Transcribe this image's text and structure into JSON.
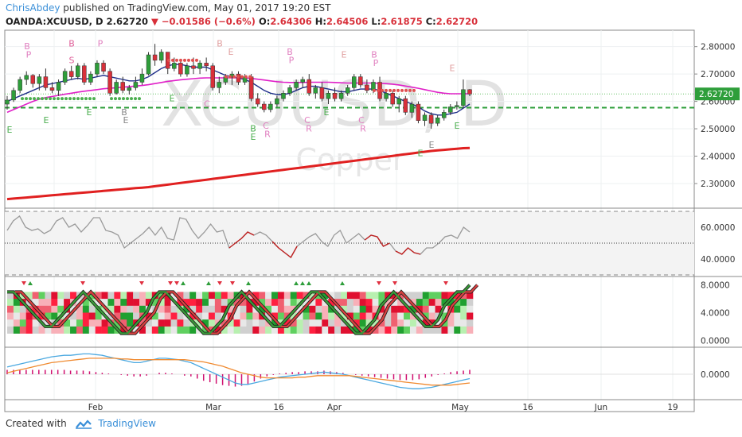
{
  "header": {
    "author": "ChrisAbdey",
    "published_text": "published on TradingView.com, May 01, 2017 19:20 EST",
    "symbol": "OANDA:XCUUSD, D",
    "last": "2.62720",
    "change": "−0.01586 (−0.6%)",
    "open_label": "O:",
    "open": "2.64306",
    "high_label": "H:",
    "high": "2.64506",
    "low_label": "L:",
    "low": "2.61875",
    "close_label": "C:",
    "close": "2.62720"
  },
  "watermark": {
    "symbol": "XCUUSD, D",
    "name": "Copper"
  },
  "footer": {
    "created_with": "Created with",
    "brand": "TradingView"
  },
  "colors": {
    "up": "#2e9e3a",
    "down": "#d8303a",
    "ma_short": "#1f2f8a",
    "ma_mid": "#e020c8",
    "ma_long": "#e02020",
    "rsi": "#9a9a9a",
    "macd": "#4aa8e0",
    "signal": "#f08a30",
    "hist": "#d01070",
    "price_tag": "#2e9e3a"
  },
  "chart_data": [
    {
      "type": "candlestick",
      "panel": "price",
      "x_ticks": [
        "Feb",
        "Mar",
        "16",
        "Apr",
        "May",
        "16",
        "Jun",
        "19"
      ],
      "y_ticks": [
        2.3,
        2.4,
        2.5,
        2.6,
        2.7,
        2.8
      ],
      "y_tick_labels": [
        "2.30000",
        "2.40000",
        "2.50000",
        "2.60000",
        "2.70000",
        "2.80000"
      ],
      "ylim": [
        2.21,
        2.86
      ],
      "last_price_label": "2.62720",
      "last_price": 2.6272,
      "support_level": 2.577,
      "ohlc": [
        [
          2.59,
          2.62,
          2.57,
          2.605
        ],
        [
          2.605,
          2.65,
          2.598,
          2.64
        ],
        [
          2.64,
          2.69,
          2.63,
          2.68
        ],
        [
          2.68,
          2.71,
          2.66,
          2.695
        ],
        [
          2.695,
          2.7,
          2.65,
          2.665
        ],
        [
          2.665,
          2.7,
          2.64,
          2.69
        ],
        [
          2.69,
          2.72,
          2.64,
          2.65
        ],
        [
          2.65,
          2.67,
          2.63,
          2.64
        ],
        [
          2.64,
          2.68,
          2.62,
          2.67
        ],
        [
          2.67,
          2.72,
          2.66,
          2.71
        ],
        [
          2.71,
          2.73,
          2.68,
          2.69
        ],
        [
          2.69,
          2.74,
          2.68,
          2.73
        ],
        [
          2.73,
          2.74,
          2.66,
          2.67
        ],
        [
          2.67,
          2.71,
          2.66,
          2.7
        ],
        [
          2.7,
          2.75,
          2.69,
          2.74
        ],
        [
          2.74,
          2.75,
          2.7,
          2.71
        ],
        [
          2.71,
          2.72,
          2.62,
          2.63
        ],
        [
          2.63,
          2.68,
          2.625,
          2.67
        ],
        [
          2.67,
          2.69,
          2.63,
          2.64
        ],
        [
          2.64,
          2.66,
          2.625,
          2.65
        ],
        [
          2.65,
          2.69,
          2.64,
          2.67
        ],
        [
          2.67,
          2.72,
          2.66,
          2.7
        ],
        [
          2.7,
          2.78,
          2.695,
          2.77
        ],
        [
          2.77,
          2.81,
          2.73,
          2.75
        ],
        [
          2.75,
          2.79,
          2.74,
          2.78
        ],
        [
          2.78,
          2.78,
          2.7,
          2.72
        ],
        [
          2.72,
          2.76,
          2.71,
          2.74
        ],
        [
          2.74,
          2.75,
          2.69,
          2.7
        ],
        [
          2.7,
          2.74,
          2.69,
          2.73
        ],
        [
          2.73,
          2.76,
          2.7,
          2.72
        ],
        [
          2.72,
          2.75,
          2.7,
          2.74
        ],
        [
          2.74,
          2.76,
          2.71,
          2.73
        ],
        [
          2.73,
          2.74,
          2.64,
          2.65
        ],
        [
          2.65,
          2.69,
          2.63,
          2.67
        ],
        [
          2.67,
          2.7,
          2.66,
          2.69
        ],
        [
          2.69,
          2.71,
          2.66,
          2.7
        ],
        [
          2.7,
          2.71,
          2.66,
          2.67
        ],
        [
          2.67,
          2.7,
          2.66,
          2.69
        ],
        [
          2.69,
          2.7,
          2.6,
          2.61
        ],
        [
          2.61,
          2.63,
          2.58,
          2.59
        ],
        [
          2.59,
          2.6,
          2.56,
          2.57
        ],
        [
          2.57,
          2.6,
          2.56,
          2.59
        ],
        [
          2.59,
          2.62,
          2.58,
          2.61
        ],
        [
          2.61,
          2.64,
          2.6,
          2.63
        ],
        [
          2.63,
          2.66,
          2.62,
          2.65
        ],
        [
          2.65,
          2.68,
          2.64,
          2.67
        ],
        [
          2.67,
          2.69,
          2.65,
          2.68
        ],
        [
          2.68,
          2.7,
          2.62,
          2.63
        ],
        [
          2.63,
          2.66,
          2.61,
          2.65
        ],
        [
          2.65,
          2.67,
          2.6,
          2.61
        ],
        [
          2.61,
          2.64,
          2.59,
          2.63
        ],
        [
          2.63,
          2.65,
          2.6,
          2.61
        ],
        [
          2.61,
          2.64,
          2.6,
          2.63
        ],
        [
          2.63,
          2.66,
          2.62,
          2.65
        ],
        [
          2.65,
          2.7,
          2.64,
          2.69
        ],
        [
          2.69,
          2.7,
          2.65,
          2.66
        ],
        [
          2.66,
          2.68,
          2.63,
          2.64
        ],
        [
          2.64,
          2.68,
          2.63,
          2.67
        ],
        [
          2.67,
          2.69,
          2.6,
          2.61
        ],
        [
          2.61,
          2.64,
          2.6,
          2.63
        ],
        [
          2.63,
          2.64,
          2.58,
          2.59
        ],
        [
          2.59,
          2.62,
          2.56,
          2.61
        ],
        [
          2.61,
          2.62,
          2.55,
          2.56
        ],
        [
          2.56,
          2.6,
          2.54,
          2.59
        ],
        [
          2.59,
          2.6,
          2.52,
          2.53
        ],
        [
          2.53,
          2.56,
          2.51,
          2.55
        ],
        [
          2.55,
          2.56,
          2.5,
          2.52
        ],
        [
          2.52,
          2.55,
          2.51,
          2.54
        ],
        [
          2.54,
          2.57,
          2.53,
          2.56
        ],
        [
          2.56,
          2.59,
          2.55,
          2.58
        ],
        [
          2.58,
          2.6,
          2.57,
          2.585
        ],
        [
          2.585,
          2.68,
          2.575,
          2.643
        ],
        [
          2.643,
          2.645,
          2.619,
          2.627
        ]
      ],
      "series": [
        {
          "name": "",
          "style": "line",
          "values": [
            2.6,
            2.61,
            2.62,
            2.63,
            2.64,
            2.65,
            2.66,
            2.665,
            2.67,
            2.675,
            2.68,
            2.685,
            2.68,
            2.685,
            2.69,
            2.695,
            2.69,
            2.685,
            2.68,
            2.675,
            2.675,
            2.68,
            2.69,
            2.705,
            2.72,
            2.73,
            2.735,
            2.735,
            2.73,
            2.725,
            2.725,
            2.725,
            2.715,
            2.705,
            2.695,
            2.69,
            2.685,
            2.68,
            2.67,
            2.655,
            2.64,
            2.63,
            2.625,
            2.625,
            2.63,
            2.64,
            2.65,
            2.655,
            2.655,
            2.65,
            2.645,
            2.64,
            2.635,
            2.635,
            2.64,
            2.645,
            2.645,
            2.645,
            2.64,
            2.63,
            2.62,
            2.61,
            2.6,
            2.59,
            2.58,
            2.565,
            2.555,
            2.55,
            2.55,
            2.555,
            2.56,
            2.575,
            2.59
          ]
        },
        {
          "name": "",
          "style": "line",
          "values": [
            2.56,
            2.57,
            2.58,
            2.59,
            2.6,
            2.608,
            2.614,
            2.618,
            2.622,
            2.626,
            2.63,
            2.634,
            2.637,
            2.64,
            2.643,
            2.646,
            2.648,
            2.65,
            2.652,
            2.654,
            2.656,
            2.658,
            2.661,
            2.665,
            2.669,
            2.673,
            2.676,
            2.679,
            2.681,
            2.683,
            2.685,
            2.686,
            2.686,
            2.686,
            2.686,
            2.686,
            2.686,
            2.686,
            2.684,
            2.681,
            2.678,
            2.675,
            2.672,
            2.67,
            2.669,
            2.669,
            2.669,
            2.67,
            2.67,
            2.67,
            2.67,
            2.669,
            2.668,
            2.667,
            2.667,
            2.667,
            2.667,
            2.667,
            2.666,
            2.665,
            2.663,
            2.66,
            2.656,
            2.652,
            2.648,
            2.643,
            2.638,
            2.633,
            2.63,
            2.628,
            2.628,
            2.628,
            2.628
          ]
        },
        {
          "name": "",
          "style": "line",
          "values": [
            2.243,
            2.245,
            2.247,
            2.249,
            2.251,
            2.253,
            2.255,
            2.257,
            2.259,
            2.261,
            2.263,
            2.265,
            2.267,
            2.269,
            2.271,
            2.273,
            2.275,
            2.277,
            2.279,
            2.281,
            2.283,
            2.285,
            2.287,
            2.29,
            2.293,
            2.296,
            2.299,
            2.302,
            2.305,
            2.308,
            2.311,
            2.314,
            2.317,
            2.32,
            2.323,
            2.326,
            2.329,
            2.332,
            2.335,
            2.338,
            2.341,
            2.344,
            2.347,
            2.35,
            2.353,
            2.356,
            2.359,
            2.362,
            2.365,
            2.368,
            2.371,
            2.374,
            2.377,
            2.38,
            2.383,
            2.386,
            2.389,
            2.392,
            2.395,
            2.398,
            2.401,
            2.404,
            2.407,
            2.41,
            2.413,
            2.416,
            2.419,
            2.421,
            2.423,
            2.425,
            2.427,
            2.429,
            2.43
          ]
        }
      ]
    },
    {
      "type": "line",
      "panel": "rsi",
      "y_ticks": [
        40,
        60
      ],
      "y_tick_labels": [
        "40.0000",
        "60.0000"
      ],
      "ylim": [
        29,
        71
      ],
      "bands": [
        30,
        50,
        70
      ],
      "values": [
        58,
        64,
        67,
        60,
        58,
        59,
        56,
        58,
        64,
        66,
        60,
        62,
        57,
        61,
        66,
        66,
        58,
        57,
        55,
        47,
        50,
        53,
        56,
        60,
        55,
        60,
        53,
        52,
        66,
        65,
        58,
        53,
        57,
        62,
        57,
        58,
        47,
        50,
        53,
        57,
        55,
        57,
        55,
        51,
        47,
        44,
        41,
        48,
        51,
        54,
        56,
        51,
        48,
        55,
        58,
        50,
        53,
        56,
        52,
        55,
        54,
        48,
        50,
        45,
        43,
        47,
        44,
        43,
        47,
        47,
        50,
        54,
        55,
        53,
        60,
        57
      ]
    },
    {
      "type": "heatmap",
      "panel": "oscillator",
      "y_ticks": [
        0,
        4,
        8
      ],
      "y_tick_labels": [
        "0.0000",
        "4.0000",
        "8.0000"
      ],
      "ylim": [
        -1,
        9
      ],
      "wave": [
        7,
        7,
        6,
        5,
        4,
        3,
        2,
        2,
        3,
        4,
        5,
        6,
        7,
        6,
        5,
        4,
        3,
        2,
        1,
        1,
        2,
        3,
        4,
        6,
        7,
        7,
        6,
        5,
        4,
        3,
        2,
        1,
        1,
        2,
        3,
        5,
        6,
        7,
        6,
        5,
        4,
        3,
        2,
        2,
        3,
        4,
        5,
        6,
        7,
        7,
        6,
        5,
        4,
        3,
        2,
        1,
        1,
        2,
        3,
        5,
        6,
        7,
        6,
        5,
        4,
        3,
        2,
        2,
        3,
        5,
        6,
        7,
        7,
        8
      ]
    },
    {
      "type": "line",
      "panel": "macd",
      "y_ticks": [
        0
      ],
      "y_tick_labels": [
        "0.0000"
      ],
      "ylim": [
        -0.035,
        0.035
      ],
      "macd": [
        0.01,
        0.012,
        0.014,
        0.016,
        0.018,
        0.02,
        0.022,
        0.024,
        0.025,
        0.026,
        0.026,
        0.027,
        0.028,
        0.028,
        0.027,
        0.026,
        0.024,
        0.022,
        0.02,
        0.018,
        0.016,
        0.016,
        0.018,
        0.02,
        0.022,
        0.022,
        0.021,
        0.02,
        0.018,
        0.016,
        0.012,
        0.008,
        0.004,
        0.0,
        -0.004,
        -0.008,
        -0.012,
        -0.014,
        -0.014,
        -0.012,
        -0.01,
        -0.008,
        -0.006,
        -0.004,
        -0.003,
        -0.002,
        -0.001,
        0.0,
        0.001,
        0.002,
        0.003,
        0.002,
        0.001,
        0.0,
        -0.002,
        -0.004,
        -0.006,
        -0.008,
        -0.01,
        -0.012,
        -0.014,
        -0.016,
        -0.018,
        -0.019,
        -0.02,
        -0.02,
        -0.019,
        -0.018,
        -0.016,
        -0.014,
        -0.012,
        -0.01,
        -0.008,
        -0.006
      ],
      "signal": [
        0.002,
        0.004,
        0.006,
        0.008,
        0.01,
        0.012,
        0.014,
        0.016,
        0.017,
        0.018,
        0.019,
        0.02,
        0.021,
        0.022,
        0.022,
        0.022,
        0.022,
        0.022,
        0.021,
        0.021,
        0.02,
        0.02,
        0.02,
        0.02,
        0.02,
        0.02,
        0.02,
        0.02,
        0.02,
        0.019,
        0.018,
        0.017,
        0.015,
        0.013,
        0.011,
        0.008,
        0.005,
        0.002,
        0.0,
        -0.002,
        -0.004,
        -0.005,
        -0.005,
        -0.005,
        -0.005,
        -0.005,
        -0.004,
        -0.004,
        -0.003,
        -0.002,
        -0.002,
        -0.002,
        -0.002,
        -0.002,
        -0.002,
        -0.003,
        -0.004,
        -0.005,
        -0.006,
        -0.007,
        -0.008,
        -0.009,
        -0.01,
        -0.011,
        -0.012,
        -0.013,
        -0.014,
        -0.015,
        -0.015,
        -0.015,
        -0.015,
        -0.014,
        -0.013,
        -0.012
      ],
      "hist": [
        0.006,
        0.006,
        0.006,
        0.006,
        0.006,
        0.006,
        0.006,
        0.006,
        0.006,
        0.006,
        0.005,
        0.005,
        0.005,
        0.004,
        0.003,
        0.002,
        0.001,
        0.0,
        -0.001,
        -0.002,
        -0.003,
        -0.003,
        -0.002,
        0.0,
        0.002,
        0.002,
        0.001,
        0.0,
        -0.002,
        -0.003,
        -0.006,
        -0.009,
        -0.011,
        -0.013,
        -0.015,
        -0.016,
        -0.017,
        -0.016,
        -0.014,
        -0.01,
        -0.006,
        -0.003,
        -0.001,
        0.001,
        0.002,
        0.003,
        0.003,
        0.004,
        0.004,
        0.004,
        0.005,
        0.004,
        0.003,
        0.002,
        0.0,
        -0.001,
        -0.002,
        -0.003,
        -0.004,
        -0.005,
        -0.006,
        -0.007,
        -0.008,
        -0.008,
        -0.008,
        -0.007,
        -0.005,
        -0.003,
        -0.001,
        0.001,
        0.003,
        0.004,
        0.005,
        0.006
      ]
    }
  ]
}
